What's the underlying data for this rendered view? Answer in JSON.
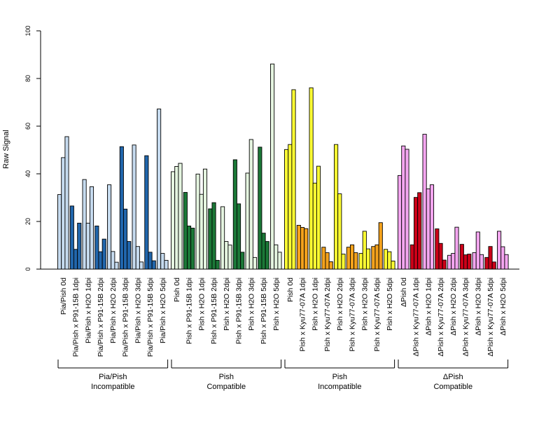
{
  "chart_data": {
    "type": "bar",
    "title": "",
    "xlabel": "",
    "ylabel": "Raw Signal",
    "ylim": [
      0,
      100
    ],
    "yticks": [
      0,
      20,
      40,
      60,
      80,
      100
    ],
    "grid": false,
    "legend": "none",
    "bar_stroke": "#000000",
    "groups": [
      {
        "label_line1": "Pia/Pish",
        "label_line2": "Incompatible",
        "categories": [
          {
            "label": "Pia/Pish 0d",
            "values": [
              31.3,
              46.8,
              55.6
            ],
            "colors": [
              "#c6dbef",
              "#c6dbef",
              "#c6dbef"
            ]
          },
          {
            "label": "Pia/Pish x P91-15B 1dpi",
            "values": [
              26.5,
              8.3,
              19.3
            ],
            "colors": [
              "#2166ac",
              "#2166ac",
              "#2166ac"
            ]
          },
          {
            "label": "Pia/Pish x H2O 1dpi",
            "values": [
              37.6,
              19.3,
              34.6
            ],
            "colors": [
              "#c6dbef",
              "#c6dbef",
              "#c6dbef"
            ]
          },
          {
            "label": "Pia/Pish x P91-15B 2dpi",
            "values": [
              18.1,
              7.3,
              12.6
            ],
            "colors": [
              "#2166ac",
              "#2166ac",
              "#2166ac"
            ]
          },
          {
            "label": "Pia/Pish x H2O 2dpi",
            "values": [
              35.4,
              7.4,
              2.9
            ],
            "colors": [
              "#c6dbef",
              "#c6dbef",
              "#c6dbef"
            ]
          },
          {
            "label": "Pia/Pish x P91-15B 3dpi",
            "values": [
              51.4,
              25.2,
              11.6
            ],
            "colors": [
              "#2166ac",
              "#2166ac",
              "#2166ac"
            ]
          },
          {
            "label": "Pia/Pish x H2O 3dpi",
            "values": [
              52.1,
              9.5,
              3.0
            ],
            "colors": [
              "#c6dbef",
              "#c6dbef",
              "#c6dbef"
            ]
          },
          {
            "label": "Pia/Pish x P91-15B 5dpi",
            "values": [
              47.6,
              7.1,
              3.5
            ],
            "colors": [
              "#2166ac",
              "#2166ac",
              "#2166ac"
            ]
          },
          {
            "label": "Pia/Pish x H2O 5dpi",
            "values": [
              67.2,
              6.6,
              3.7
            ],
            "colors": [
              "#c6dbef",
              "#c6dbef",
              "#c6dbef"
            ]
          }
        ]
      },
      {
        "label_line1": "Pish",
        "label_line2": "Compatible",
        "categories": [
          {
            "label": "Pish 0d",
            "values": [
              40.9,
              43.1,
              44.4
            ],
            "colors": [
              "#e5f5e0",
              "#e5f5e0",
              "#e5f5e0"
            ]
          },
          {
            "label": "Pish x P91-15B 1dpi",
            "values": [
              32.2,
              18.1,
              17.2
            ],
            "colors": [
              "#1b7837",
              "#1b7837",
              "#1b7837"
            ]
          },
          {
            "label": "Pish x H2O 1dpi",
            "values": [
              39.9,
              31.4,
              42.0
            ],
            "colors": [
              "#e5f5e0",
              "#e5f5e0",
              "#e5f5e0"
            ]
          },
          {
            "label": "Pish x P91-15B 2dpi",
            "values": [
              25.3,
              27.9,
              3.7
            ],
            "colors": [
              "#1b7837",
              "#1b7837",
              "#1b7837"
            ]
          },
          {
            "label": "Pish x H2O 2dpi",
            "values": [
              26.2,
              11.6,
              10.1
            ],
            "colors": [
              "#e5f5e0",
              "#e5f5e0",
              "#e5f5e0"
            ]
          },
          {
            "label": "Pish x P91-15B 3dpi",
            "values": [
              45.9,
              27.4,
              7.1
            ],
            "colors": [
              "#1b7837",
              "#1b7837",
              "#1b7837"
            ]
          },
          {
            "label": "Pish x H2O 3dpi",
            "values": [
              40.3,
              54.4,
              4.9
            ],
            "colors": [
              "#e5f5e0",
              "#e5f5e0",
              "#e5f5e0"
            ]
          },
          {
            "label": "Pish x P91-15B 5dpi",
            "values": [
              51.2,
              15.1,
              11.6
            ],
            "colors": [
              "#1b7837",
              "#1b7837",
              "#1b7837"
            ]
          },
          {
            "label": "Pish x H2O 5dpi",
            "values": [
              86.1,
              10.2,
              7.1
            ],
            "colors": [
              "#e5f5e0",
              "#e5f5e0",
              "#e5f5e0"
            ]
          }
        ]
      },
      {
        "label_line1": "Pish",
        "label_line2": "Incompatible",
        "categories": [
          {
            "label": "Pish 0d",
            "values": [
              50.2,
              52.3,
              75.3
            ],
            "colors": [
              "#ffff33",
              "#ffff33",
              "#ffff33"
            ]
          },
          {
            "label": "Pish x Kyu77-07A 1dpi",
            "values": [
              18.4,
              17.5,
              17.0
            ],
            "colors": [
              "#f4a21c",
              "#f4a21c",
              "#f4a21c"
            ]
          },
          {
            "label": "Pish x H2O 1dpi",
            "values": [
              76.1,
              36.1,
              43.2
            ],
            "colors": [
              "#ffff33",
              "#ffff33",
              "#ffff33"
            ]
          },
          {
            "label": "Pish x Kyu77-07A 2dpi",
            "values": [
              9.2,
              6.9,
              3.1
            ],
            "colors": [
              "#f4a21c",
              "#f4a21c",
              "#f4a21c"
            ]
          },
          {
            "label": "Pish x H2O 2dpi",
            "values": [
              52.3,
              31.6,
              6.3
            ],
            "colors": [
              "#ffff33",
              "#ffff33",
              "#ffff33"
            ]
          },
          {
            "label": "Pish x Kyu77-07A 3dpi",
            "values": [
              9.2,
              10.2,
              6.9
            ],
            "colors": [
              "#f4a21c",
              "#f4a21c",
              "#f4a21c"
            ]
          },
          {
            "label": "Pish x H2O 3dpi",
            "values": [
              6.6,
              15.9,
              8.5
            ],
            "colors": [
              "#ffff33",
              "#ffff33",
              "#ffff33"
            ]
          },
          {
            "label": "Pish x Kyu77-07A 5dpi",
            "values": [
              9.5,
              10.2,
              19.5
            ],
            "colors": [
              "#f4a21c",
              "#f4a21c",
              "#f4a21c"
            ]
          },
          {
            "label": "Pish x H2O 5dpi",
            "values": [
              8.3,
              7.3,
              3.4
            ],
            "colors": [
              "#ffff33",
              "#ffff33",
              "#ffff33"
            ]
          }
        ]
      },
      {
        "label_line1": "ΔPish",
        "label_line2": "Compatible",
        "categories": [
          {
            "label": "ΔPish 0d",
            "values": [
              39.3,
              51.7,
              50.3
            ],
            "colors": [
              "#f4a6f0",
              "#f4a6f0",
              "#f4a6f0"
            ]
          },
          {
            "label": "ΔPish x Kyu77-07A 1dpi",
            "values": [
              10.2,
              30.1,
              32.1
            ],
            "colors": [
              "#cc0018",
              "#cc0018",
              "#cc0018"
            ]
          },
          {
            "label": "ΔPish x H2O 1dpi",
            "values": [
              56.6,
              33.7,
              35.4
            ],
            "colors": [
              "#f4a6f0",
              "#f4a6f0",
              "#f4a6f0"
            ]
          },
          {
            "label": "ΔPish x Kyu77-07A 2dpi",
            "values": [
              16.9,
              10.8,
              3.8
            ],
            "colors": [
              "#cc0018",
              "#cc0018",
              "#cc0018"
            ]
          },
          {
            "label": "ΔPish x H2O 2dpi",
            "values": [
              5.8,
              6.6,
              17.6
            ],
            "colors": [
              "#f4a6f0",
              "#f4a6f0",
              "#f4a6f0"
            ]
          },
          {
            "label": "ΔPish x Kyu77-07A 3dpi",
            "values": [
              10.4,
              6.0,
              6.3
            ],
            "colors": [
              "#cc0018",
              "#cc0018",
              "#cc0018"
            ]
          },
          {
            "label": "ΔPish x H2O 3dpi",
            "values": [
              6.9,
              15.6,
              6.1
            ],
            "colors": [
              "#f4a6f0",
              "#f4a6f0",
              "#f4a6f0"
            ]
          },
          {
            "label": "ΔPish x Kyu77-07A 5dpi",
            "values": [
              4.9,
              9.5,
              3.0
            ],
            "colors": [
              "#cc0018",
              "#cc0018",
              "#cc0018"
            ]
          },
          {
            "label": "ΔPish x H2O 5dpi",
            "values": [
              15.9,
              9.4,
              6.1
            ],
            "colors": [
              "#f4a6f0",
              "#f4a6f0",
              "#f4a6f0"
            ]
          }
        ]
      }
    ]
  }
}
